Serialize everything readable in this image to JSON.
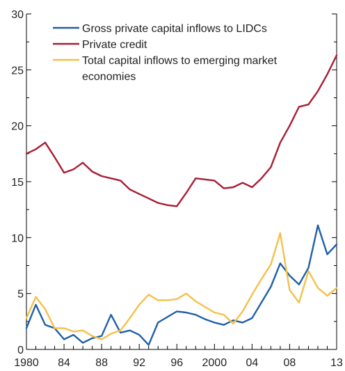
{
  "chart_data": {
    "type": "line",
    "title": "",
    "xlabel": "",
    "ylabel": "",
    "x": [
      1980,
      1981,
      1982,
      1983,
      1984,
      1985,
      1986,
      1987,
      1988,
      1989,
      1990,
      1991,
      1992,
      1993,
      1994,
      1995,
      1996,
      1997,
      1998,
      1999,
      2000,
      2001,
      2002,
      2003,
      2004,
      2005,
      2006,
      2007,
      2008,
      2009,
      2010,
      2011,
      2012,
      2013
    ],
    "x_tick_values": [
      1980,
      1984,
      1988,
      1992,
      1996,
      2000,
      2004,
      2008,
      2013
    ],
    "x_tick_labels": [
      "1980",
      "84",
      "88",
      "92",
      "96",
      "2000",
      "04",
      "08",
      "13"
    ],
    "xlim": [
      1980,
      2013
    ],
    "ylim": [
      0,
      30
    ],
    "y_tick_values": [
      0,
      5,
      10,
      15,
      20,
      25,
      30
    ],
    "y_tick_labels": [
      "0",
      "5",
      "10",
      "15",
      "20",
      "25",
      "30"
    ],
    "grid": false,
    "legend_position": "top-center",
    "series": [
      {
        "name": "Gross private capital inflows to LIDCs",
        "color": "#1f5fa8",
        "values": [
          1.9,
          4.0,
          2.2,
          1.9,
          0.9,
          1.3,
          0.6,
          1.0,
          1.2,
          3.1,
          1.5,
          1.7,
          1.3,
          0.4,
          2.4,
          2.9,
          3.4,
          3.3,
          3.1,
          2.7,
          2.4,
          2.2,
          2.6,
          2.4,
          2.8,
          4.2,
          5.6,
          7.7,
          6.6,
          5.8,
          7.3,
          11.1,
          8.5,
          9.4
        ]
      },
      {
        "name": "Private credit",
        "color": "#a81c34",
        "values": [
          17.5,
          17.9,
          18.5,
          17.2,
          15.8,
          16.1,
          16.7,
          15.9,
          15.5,
          15.3,
          15.1,
          14.3,
          13.9,
          13.5,
          13.1,
          12.9,
          12.8,
          14.0,
          15.3,
          15.2,
          15.1,
          14.4,
          14.5,
          14.9,
          14.5,
          15.3,
          16.3,
          18.5,
          20.0,
          21.7,
          21.9,
          23.1,
          24.6,
          26.3
        ]
      },
      {
        "name": "Total capital inflows to emerging market economies",
        "color": "#f5c04a",
        "values": [
          2.8,
          4.7,
          3.6,
          1.9,
          1.9,
          1.6,
          1.7,
          1.2,
          0.9,
          1.4,
          1.7,
          2.8,
          4.0,
          4.9,
          4.4,
          4.4,
          4.5,
          5.0,
          4.3,
          3.8,
          3.3,
          3.1,
          2.3,
          3.4,
          4.9,
          6.3,
          7.6,
          10.4,
          5.3,
          4.2,
          7.0,
          5.5,
          4.8,
          5.5
        ]
      }
    ],
    "legend_lines": [
      [
        "Gross private capital inflows to LIDCs"
      ],
      [
        "Private credit"
      ],
      [
        "Total capital inflows to emerging market",
        "economies"
      ]
    ]
  }
}
